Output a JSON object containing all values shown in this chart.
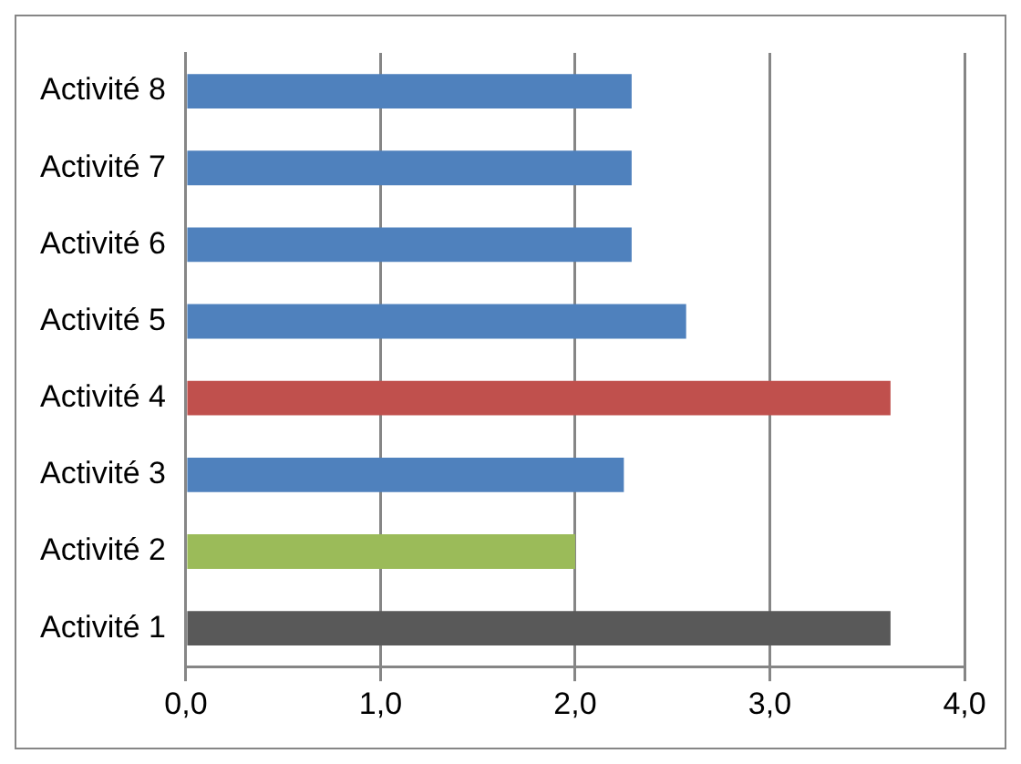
{
  "chart_data": {
    "type": "bar",
    "orientation": "horizontal",
    "categories": [
      "Activité 8",
      "Activité 7",
      "Activité 6",
      "Activité 5",
      "Activité 4",
      "Activité 3",
      "Activité 2",
      "Activité 1"
    ],
    "values": [
      2.29,
      2.29,
      2.29,
      2.57,
      3.62,
      2.25,
      2.0,
      3.62
    ],
    "colors": [
      "#4f81bd",
      "#4f81bd",
      "#4f81bd",
      "#4f81bd",
      "#c0504d",
      "#4f81bd",
      "#9bbb59",
      "#595959"
    ],
    "xlim": [
      0,
      4
    ],
    "xticks": [
      {
        "value": 0,
        "label": "0,0"
      },
      {
        "value": 1,
        "label": "1,0"
      },
      {
        "value": 2,
        "label": "2,0"
      },
      {
        "value": 3,
        "label": "3,0"
      },
      {
        "value": 4,
        "label": "4,0"
      }
    ],
    "grid": "x",
    "legend": false
  }
}
